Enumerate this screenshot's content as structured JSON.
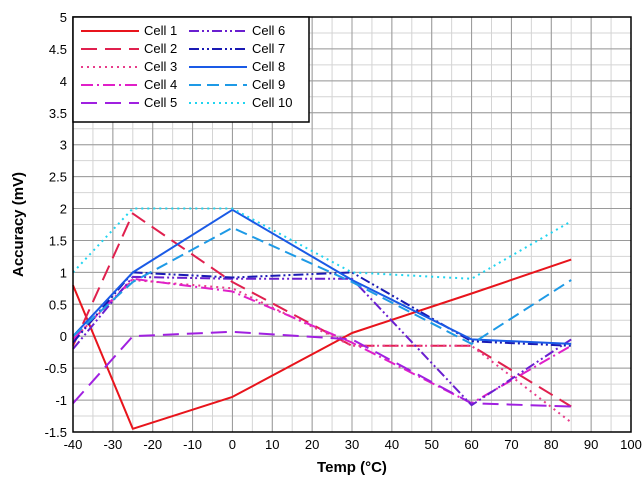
{
  "chart_data": {
    "type": "line",
    "title": "",
    "xlabel": "Temp (°C)",
    "ylabel": "Accuracy (mV)",
    "xlim": [
      -40,
      100
    ],
    "ylim": [
      -1.5,
      5
    ],
    "x_ticks": [
      -40,
      -30,
      -20,
      -10,
      0,
      10,
      20,
      30,
      40,
      50,
      60,
      70,
      80,
      90,
      100
    ],
    "y_ticks": [
      -1.5,
      -1,
      -0.5,
      0,
      0.5,
      1,
      1.5,
      2,
      2.5,
      3,
      3.5,
      4,
      4.5,
      5
    ],
    "x_minor_step": 5,
    "y_minor_step": 0.25,
    "grid": true,
    "legend_position": "top-left",
    "legend_columns": 2,
    "series": [
      {
        "name": "Cell 1",
        "color": "#e8141c",
        "dash": "solid",
        "x": [
          -40,
          -25,
          0,
          30,
          60,
          85
        ],
        "y": [
          0.8,
          -1.45,
          -0.95,
          0.05,
          0.67,
          1.2
        ]
      },
      {
        "name": "Cell 2",
        "color": "#e0204e",
        "dash": "long-dash",
        "x": [
          -40,
          -25,
          0,
          30,
          60,
          85
        ],
        "y": [
          -0.15,
          1.92,
          0.85,
          -0.15,
          -0.15,
          -1.1
        ]
      },
      {
        "name": "Cell 3",
        "color": "#e83c8a",
        "dash": "dot",
        "x": [
          -40,
          -25,
          0,
          30,
          60,
          85
        ],
        "y": [
          -0.05,
          0.88,
          0.75,
          -0.15,
          -0.15,
          -1.35
        ]
      },
      {
        "name": "Cell 4",
        "color": "#e020c8",
        "dash": "dash-dot",
        "x": [
          -40,
          -25,
          0,
          30,
          60,
          85
        ],
        "y": [
          -0.05,
          0.9,
          0.7,
          -0.1,
          -1.05,
          -0.15
        ]
      },
      {
        "name": "Cell 5",
        "color": "#a020e0",
        "dash": "long-dash",
        "x": [
          -40,
          -25,
          0,
          30,
          60,
          85
        ],
        "y": [
          -1.05,
          0.0,
          0.07,
          -0.05,
          -1.05,
          -1.1
        ]
      },
      {
        "name": "Cell 6",
        "color": "#6a1fd0",
        "dash": "dash-dot-dot",
        "x": [
          -40,
          -25,
          0,
          30,
          60,
          85
        ],
        "y": [
          -0.2,
          0.93,
          0.9,
          0.9,
          -1.08,
          -0.05
        ]
      },
      {
        "name": "Cell 7",
        "color": "#1a1ab4",
        "dash": "dash-dot-dot",
        "x": [
          -40,
          -25,
          0,
          30,
          60,
          85
        ],
        "y": [
          -0.1,
          1.0,
          0.92,
          1.0,
          -0.08,
          -0.15
        ]
      },
      {
        "name": "Cell 8",
        "color": "#1a5ae6",
        "dash": "solid",
        "x": [
          -40,
          -25,
          0,
          30,
          60,
          85
        ],
        "y": [
          0.0,
          1.0,
          1.98,
          0.88,
          -0.05,
          -0.12
        ]
      },
      {
        "name": "Cell 9",
        "color": "#1e9ae6",
        "dash": "dash",
        "x": [
          -40,
          -25,
          0,
          30,
          60,
          85
        ],
        "y": [
          0.0,
          0.85,
          1.7,
          0.85,
          -0.12,
          0.88
        ]
      },
      {
        "name": "Cell 10",
        "color": "#20d4f0",
        "dash": "dot",
        "x": [
          -40,
          -25,
          0,
          30,
          60,
          85
        ],
        "y": [
          1.0,
          2.0,
          2.0,
          1.0,
          0.9,
          1.8
        ]
      }
    ]
  }
}
